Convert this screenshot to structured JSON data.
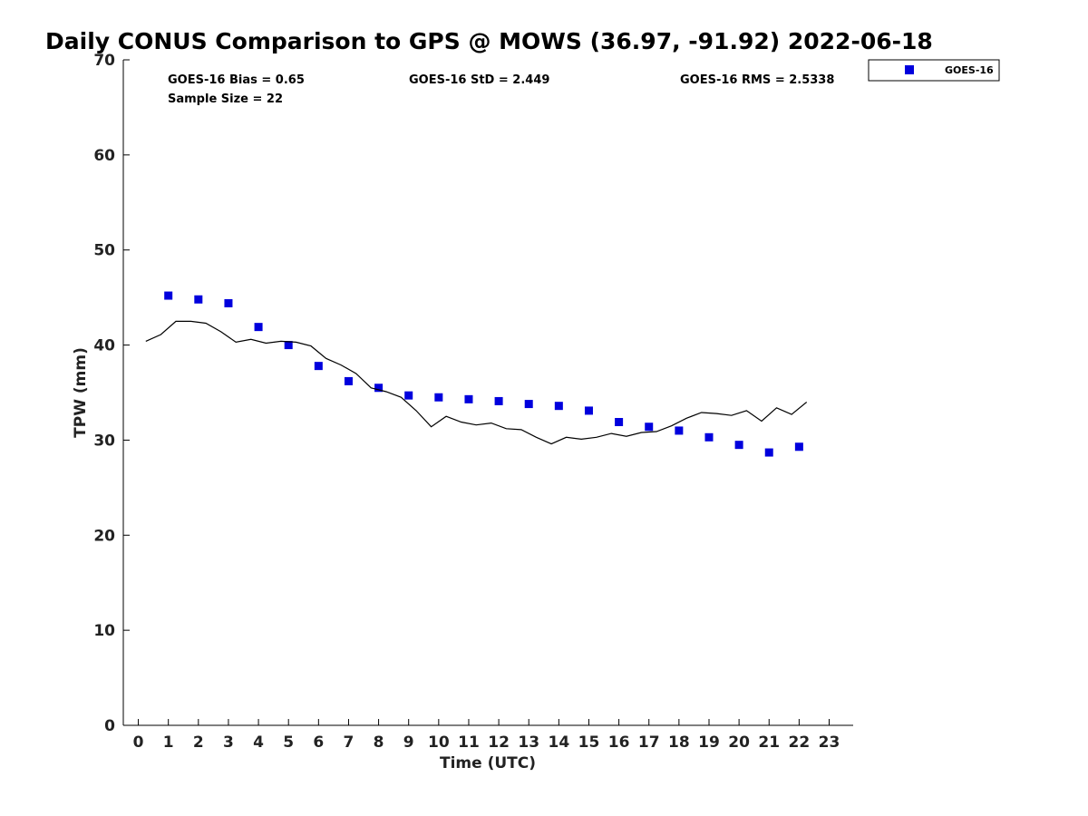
{
  "chart_data": {
    "type": "scatter",
    "title": "Daily CONUS Comparison to GPS @ MOWS (36.97, -91.92) 2022-06-18",
    "xlabel": "Time (UTC)",
    "ylabel": "TPW (mm)",
    "xlim": [
      -0.5,
      23.8
    ],
    "ylim": [
      0,
      70
    ],
    "xticks": [
      "0",
      "1",
      "2",
      "3",
      "4",
      "5",
      "6",
      "7",
      "8",
      "9",
      "10",
      "11",
      "12",
      "13",
      "14",
      "15",
      "16",
      "17",
      "18",
      "19",
      "20",
      "21",
      "22",
      "23"
    ],
    "yticks": [
      "0",
      "10",
      "20",
      "30",
      "40",
      "50",
      "60",
      "70"
    ],
    "grid": false,
    "legend_position": "top-right outside",
    "stats": {
      "bias": "GOES-16 Bias = 0.65",
      "sample": "Sample Size = 22",
      "std": "GOES-16 StD = 2.449",
      "rms": "GOES-16 RMS = 2.5338"
    },
    "series": [
      {
        "name": "GOES-16",
        "kind": "markers",
        "color": "#0000dd",
        "x": [
          1,
          2,
          3,
          4,
          5,
          6,
          7,
          8,
          9,
          10,
          11,
          12,
          13,
          14,
          15,
          16,
          17,
          18,
          19,
          20,
          21,
          22
        ],
        "y": [
          45.2,
          44.8,
          44.4,
          41.9,
          40.0,
          37.8,
          36.2,
          35.5,
          34.7,
          34.5,
          34.3,
          34.1,
          33.8,
          33.6,
          33.1,
          31.9,
          31.4,
          31.0,
          30.3,
          29.5,
          28.7,
          29.3
        ]
      },
      {
        "kind": "line",
        "color": "#000000",
        "x": [
          0.25,
          0.75,
          1.25,
          1.75,
          2.25,
          2.75,
          3.25,
          3.75,
          4.25,
          4.75,
          5.25,
          5.75,
          6.25,
          6.75,
          7.25,
          7.75,
          8.25,
          8.75,
          9.25,
          9.75,
          10.25,
          10.75,
          11.25,
          11.75,
          12.25,
          12.75,
          13.25,
          13.75,
          14.25,
          14.75,
          15.25,
          15.75,
          16.25,
          16.75,
          17.25,
          17.75,
          18.25,
          18.75,
          19.25,
          19.75,
          20.25,
          20.75,
          21.25,
          21.75,
          22.25
        ],
        "y": [
          40.4,
          41.1,
          42.5,
          42.5,
          42.3,
          41.4,
          40.3,
          40.6,
          40.2,
          40.4,
          40.3,
          39.9,
          38.6,
          37.9,
          37.0,
          35.5,
          35.1,
          34.5,
          33.1,
          31.4,
          32.5,
          31.9,
          31.6,
          31.8,
          31.2,
          31.1,
          30.3,
          29.6,
          30.3,
          30.1,
          30.3,
          30.7,
          30.4,
          30.8,
          30.9,
          31.5,
          32.3,
          32.9,
          32.8,
          32.6,
          33.1,
          32.0,
          33.4,
          32.7,
          34.0
        ]
      }
    ]
  }
}
